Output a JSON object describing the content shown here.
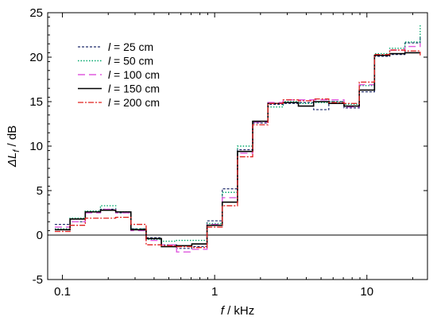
{
  "chart_data": {
    "type": "line",
    "step": true,
    "xscale": "log",
    "xlim": [
      0.08,
      25
    ],
    "ylim": [
      -5,
      25
    ],
    "x_ticks": [
      0.1,
      1,
      10
    ],
    "x_tick_labels": [
      "0.1",
      "1",
      "10"
    ],
    "y_ticks": [
      -5,
      0,
      5,
      10,
      15,
      20,
      25
    ],
    "y_tick_labels": [
      "-5",
      "0",
      "5",
      "10",
      "15",
      "20",
      "25"
    ],
    "xlabel": {
      "var": "f",
      "unit": " / kHz"
    },
    "ylabel": {
      "prefix": "ΔL",
      "sub": "f",
      "unit": " / dB"
    },
    "reference_line_y": 0,
    "legend_position": "top-left",
    "band_edges": [
      0.0891,
      0.1122,
      0.1413,
      0.1778,
      0.2239,
      0.2818,
      0.3548,
      0.4467,
      0.5623,
      0.7079,
      0.8913,
      1.122,
      1.413,
      1.778,
      2.239,
      2.818,
      3.548,
      4.467,
      5.623,
      7.079,
      8.913,
      11.22,
      14.13,
      17.78,
      22.39
    ],
    "series": [
      {
        "name_var": "l",
        "name_value": " = 25 cm",
        "color": "#1f2a6b",
        "dash": "3,2",
        "width": 1.2,
        "values": [
          1.2,
          1.5,
          2.6,
          2.9,
          2.5,
          0.7,
          -0.3,
          -1.1,
          -1.5,
          -1.3,
          1.6,
          5.2,
          9.6,
          12.6,
          14.7,
          14.8,
          14.9,
          14.1,
          15.0,
          14.3,
          16.1,
          20.1,
          20.3,
          21.6,
          22.2
        ]
      },
      {
        "name_var": "l",
        "name_value": " = 50 cm",
        "color": "#00a86b",
        "dash": "1.5,2",
        "width": 1.4,
        "values": [
          0.7,
          1.9,
          2.7,
          3.3,
          2.6,
          0.7,
          -0.5,
          -0.7,
          -0.6,
          -0.6,
          1.3,
          4.8,
          10.0,
          12.8,
          14.4,
          15.0,
          14.8,
          14.9,
          15.0,
          14.7,
          16.8,
          20.4,
          21.0,
          21.7,
          23.7
        ]
      },
      {
        "name_var": "l",
        "name_value": " = 100 cm",
        "color": "#e05adf",
        "dash": "9,5",
        "width": 1.4,
        "values": [
          0.9,
          1.5,
          2.5,
          2.9,
          2.5,
          0.5,
          -0.6,
          -1.1,
          -1.9,
          -1.6,
          1.2,
          4.2,
          9.2,
          12.7,
          14.9,
          15.2,
          15.2,
          15.2,
          15.2,
          14.4,
          16.9,
          20.2,
          20.8,
          21.2,
          21.6
        ]
      },
      {
        "name_var": "l",
        "name_value": " = 150 cm",
        "color": "#000000",
        "dash": "",
        "width": 1.6,
        "values": [
          0.6,
          1.8,
          2.6,
          2.8,
          2.6,
          0.6,
          -0.4,
          -1.3,
          -1.2,
          -1.0,
          1.1,
          3.7,
          9.4,
          12.8,
          14.8,
          14.9,
          14.5,
          15.0,
          14.8,
          14.5,
          16.3,
          20.2,
          20.4,
          20.5,
          20.5
        ]
      },
      {
        "name_var": "l",
        "name_value": " = 200 cm",
        "color": "#e0201e",
        "dash": "7,2,2,2",
        "width": 1.3,
        "values": [
          0.4,
          1.1,
          1.9,
          1.9,
          2.0,
          1.2,
          -1.1,
          -1.2,
          -1.3,
          -1.4,
          0.9,
          3.3,
          8.8,
          12.4,
          14.8,
          15.2,
          15.1,
          15.3,
          14.9,
          14.8,
          17.2,
          20.3,
          20.8,
          20.7,
          20.2
        ]
      }
    ]
  }
}
